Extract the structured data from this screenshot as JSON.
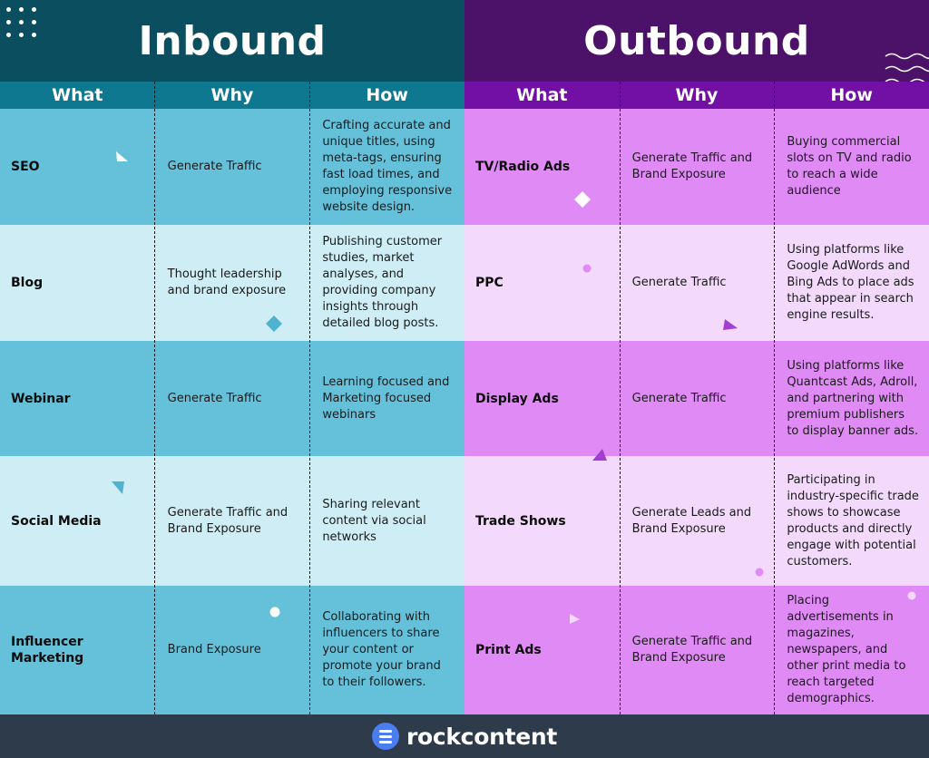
{
  "inbound": {
    "title": "Inbound",
    "headers": [
      "What",
      "Why",
      "How"
    ],
    "rows": [
      {
        "what": "SEO",
        "why": "Generate Traffic",
        "how": "Crafting accurate and unique titles, using meta-tags, ensuring fast load times, and employing responsive website design."
      },
      {
        "what": "Blog",
        "why": "Thought leadership and brand exposure",
        "how": "Publishing customer studies, market analyses, and providing company insights through detailed blog posts."
      },
      {
        "what": "Webinar",
        "why": "Generate Traffic",
        "how": "Learning focused and Marketing focused webinars"
      },
      {
        "what": "Social Media",
        "why": "Generate Traffic and Brand Exposure",
        "how": "Sharing relevant content via social networks"
      },
      {
        "what": "Influencer Marketing",
        "why": "Brand Exposure",
        "how": "Collaborating with influencers to share your content or promote your brand to their followers."
      }
    ]
  },
  "outbound": {
    "title": "Outbound",
    "headers": [
      "What",
      "Why",
      "How"
    ],
    "rows": [
      {
        "what": "TV/Radio Ads",
        "why": "Generate Traffic and Brand Exposure",
        "how": "Buying commercial slots on TV and radio to reach a wide audience"
      },
      {
        "what": "PPC",
        "why": "Generate Traffic",
        "how": "Using platforms like Google AdWords and Bing Ads to place ads that appear in search engine results."
      },
      {
        "what": "Display Ads",
        "why": "Generate Traffic",
        "how": "Using platforms like Quantcast Ads, Adroll, and partnering with premium publishers to display banner ads."
      },
      {
        "what": "Trade Shows",
        "why": "Generate Leads and Brand Exposure",
        "how": "Participating in industry-specific trade shows to showcase products and directly engage with potential customers."
      },
      {
        "what": "Print Ads",
        "why": "Generate Traffic and Brand Exposure",
        "how": "Placing advertisements in magazines, newspapers, and other print media to reach targeted demographics."
      }
    ]
  },
  "footer": {
    "brand": "rockcontent",
    "logo_icon": "rockcontent-logo-icon"
  },
  "colors": {
    "inbound_title_bg": "#0a4e5f",
    "inbound_header_bg": "#0d7890",
    "inbound_row_dark": "#65c1d9",
    "inbound_row_light": "#cfedf5",
    "outbound_title_bg": "#4c1169",
    "outbound_header_bg": "#7210a6",
    "outbound_row_dark": "#e08af6",
    "outbound_row_light": "#f3d9fb",
    "footer_bg": "#2d3b4a"
  }
}
